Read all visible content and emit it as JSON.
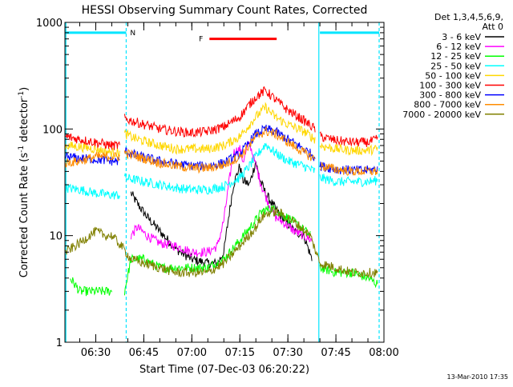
{
  "chart_data": {
    "type": "line",
    "title": "HESSI Observing Summary Count Rates, Corrected",
    "ylabel": "Corrected Count Rate (s^-1 detector^-1)",
    "ylabel_parts": [
      "Corrected Count Rate (s",
      "-1",
      " detector",
      "-1",
      ")"
    ],
    "xlabel": "Start Time (07-Dec-03 06:20:22)",
    "footer_date": "13-Mar-2010 17:35",
    "yscale": "log",
    "ylim": [
      1,
      1000
    ],
    "y_ticks": [
      1,
      10,
      100,
      1000
    ],
    "xlim": [
      "06:20:22",
      "08:00:00"
    ],
    "x_ticks": [
      "06:30",
      "06:45",
      "07:00",
      "07:15",
      "07:30",
      "07:45",
      "08:00"
    ],
    "legend": {
      "placement": "right",
      "header": [
        "Det 1,3,4,5,6,9,",
        "Att 0"
      ],
      "entries": [
        {
          "label": "3 - 6 keV",
          "color": "#000000"
        },
        {
          "label": "6 - 12 keV",
          "color": "#ff00ff"
        },
        {
          "label": "12 - 25 keV",
          "color": "#00ff00"
        },
        {
          "label": "25 - 50 keV",
          "color": "#00ffff"
        },
        {
          "label": "50 - 100 keV",
          "color": "#ffd700"
        },
        {
          "label": "100 - 300 keV",
          "color": "#ff0000"
        },
        {
          "label": "300 - 800 keV",
          "color": "#0000ff"
        },
        {
          "label": "800 - 7000 keV",
          "color": "#ff8c00"
        },
        {
          "label": "7000 - 20000 keV",
          "color": "#808000"
        }
      ]
    },
    "annotations": [
      {
        "label": "N",
        "color": "#00e5ff",
        "segments": [
          [
            "06:20:22",
            "06:39:30"
          ],
          [
            "07:40:00",
            "07:58:30"
          ]
        ],
        "level": 800
      },
      {
        "label": "F",
        "color": "#ff0000",
        "segments": [
          [
            "07:05:30",
            "07:26:30"
          ]
        ],
        "level": 700
      }
    ],
    "night_markers": {
      "color": "#00e5ff",
      "solid": [
        "06:20:40",
        "07:39:40"
      ],
      "dashed": [
        "06:39:30",
        "07:58:30"
      ]
    },
    "series": [
      {
        "name": "3 - 6 keV",
        "color": "#000000",
        "gaps_before": [
          "06:41:00",
          "07:40:00"
        ],
        "x": [
          "06:41:00",
          "06:43:00",
          "06:46:00",
          "06:50:00",
          "06:55:00",
          "07:00:00",
          "07:05:00",
          "07:08:00",
          "07:10:00",
          "07:11:30",
          "07:13:00",
          "07:15:00",
          "07:16:00",
          "07:18:00",
          "07:20:00",
          "07:21:00",
          "07:23:00",
          "07:26:00",
          "07:29:00",
          "07:32:00",
          "07:35:00",
          "07:37:30"
        ],
        "y": [
          25,
          20,
          15,
          11,
          7.5,
          6,
          5.5,
          5.5,
          7,
          15,
          30,
          45,
          33,
          30,
          50,
          35,
          25,
          18,
          14,
          11,
          10,
          6
        ]
      },
      {
        "name": "6 - 12 keV",
        "color": "#ff00ff",
        "gaps_before": [
          "06:41:00",
          "07:40:00"
        ],
        "x": [
          "06:39:00",
          "06:41:00",
          "06:43:00",
          "06:46:00",
          "06:50:00",
          "06:55:00",
          "07:00:00",
          "07:05:00",
          "07:08:00",
          "07:10:00",
          "07:11:30",
          "07:13:00",
          "07:15:00",
          "07:16:00",
          "07:18:00",
          "07:20:00",
          "07:22:00",
          "07:24:00",
          "07:26:00",
          "07:29:00",
          "07:32:00",
          "07:35:00",
          "07:37:30"
        ],
        "y": [
          6,
          10,
          12,
          10,
          8.5,
          8,
          7,
          7,
          8,
          14,
          30,
          60,
          65,
          50,
          75,
          45,
          28,
          20,
          15,
          13,
          11,
          10,
          9
        ]
      },
      {
        "name": "12 - 25 keV",
        "color": "#00ff00",
        "gaps_before": [
          "06:39:00",
          "07:40:00"
        ],
        "x": [
          "06:22:00",
          "06:25:00",
          "06:30:00",
          "06:35:00",
          "06:39:00",
          "06:41:00",
          "06:45:00",
          "06:50:00",
          "06:55:00",
          "07:00:00",
          "07:05:00",
          "07:10:00",
          "07:15:00",
          "07:20:00",
          "07:22:00",
          "07:25:00",
          "07:28:00",
          "07:31:00",
          "07:34:00",
          "07:37:00",
          "07:40:00",
          "07:45:00",
          "07:50:00",
          "07:55:00",
          "07:58:00"
        ],
        "y": [
          4,
          3,
          3,
          3,
          3,
          6,
          6,
          5,
          5,
          5,
          5,
          6,
          9,
          14,
          17,
          18,
          16,
          14,
          12,
          10,
          5,
          4.5,
          4.5,
          4,
          3.5
        ]
      },
      {
        "name": "25 - 50 keV",
        "color": "#00ffff",
        "gaps_before": [
          "06:39:00",
          "07:40:00"
        ],
        "x": [
          "06:20:30",
          "06:25:00",
          "06:30:00",
          "06:35:00",
          "06:37:30",
          "06:39:00",
          "06:43:00",
          "06:50:00",
          "06:55:00",
          "07:00:00",
          "07:05:00",
          "07:10:00",
          "07:15:00",
          "07:18:00",
          "07:20:00",
          "07:23:00",
          "07:26:00",
          "07:30:00",
          "07:35:00",
          "07:38:30",
          "07:40:00",
          "07:45:00",
          "07:50:00",
          "07:55:00",
          "07:58:00"
        ],
        "y": [
          28,
          27,
          25,
          24,
          24,
          35,
          33,
          30,
          28,
          27,
          27,
          29,
          35,
          45,
          55,
          72,
          60,
          50,
          45,
          40,
          35,
          32,
          32,
          32,
          33
        ]
      },
      {
        "name": "50 - 100 keV",
        "color": "#ffd700",
        "gaps_before": [
          "06:39:00",
          "07:40:00"
        ],
        "x": [
          "06:20:30",
          "06:25:00",
          "06:30:00",
          "06:35:00",
          "06:37:30",
          "06:39:00",
          "06:43:00",
          "06:50:00",
          "06:55:00",
          "07:00:00",
          "07:05:00",
          "07:10:00",
          "07:15:00",
          "07:18:00",
          "07:20:00",
          "07:23:00",
          "07:26:00",
          "07:30:00",
          "07:35:00",
          "07:38:30",
          "07:40:00",
          "07:45:00",
          "07:50:00",
          "07:55:00",
          "07:58:00"
        ],
        "y": [
          70,
          68,
          65,
          60,
          60,
          90,
          80,
          70,
          65,
          65,
          65,
          70,
          85,
          110,
          130,
          160,
          130,
          110,
          95,
          80,
          70,
          65,
          63,
          63,
          65
        ]
      },
      {
        "name": "100 - 300 keV",
        "color": "#ff0000",
        "gaps_before": [
          "06:39:00",
          "07:40:00"
        ],
        "x": [
          "06:20:30",
          "06:25:00",
          "06:30:00",
          "06:35:00",
          "06:37:30",
          "06:39:00",
          "06:43:00",
          "06:50:00",
          "06:55:00",
          "07:00:00",
          "07:05:00",
          "07:10:00",
          "07:15:00",
          "07:18:00",
          "07:20:00",
          "07:23:00",
          "07:26:00",
          "07:30:00",
          "07:35:00",
          "07:38:30",
          "07:40:00",
          "07:45:00",
          "07:50:00",
          "07:55:00",
          "07:58:00"
        ],
        "y": [
          85,
          80,
          75,
          70,
          70,
          125,
          115,
          100,
          95,
          92,
          95,
          105,
          130,
          170,
          200,
          230,
          190,
          150,
          120,
          100,
          85,
          78,
          75,
          75,
          80
        ]
      },
      {
        "name": "300 - 800 keV",
        "color": "#0000ff",
        "gaps_before": [
          "06:39:00",
          "07:40:00"
        ],
        "x": [
          "06:20:30",
          "06:25:00",
          "06:30:00",
          "06:35:00",
          "06:37:30",
          "06:39:00",
          "06:43:00",
          "06:50:00",
          "06:55:00",
          "07:00:00",
          "07:05:00",
          "07:10:00",
          "07:15:00",
          "07:18:00",
          "07:20:00",
          "07:23:00",
          "07:26:00",
          "07:30:00",
          "07:35:00",
          "07:38:30",
          "07:40:00",
          "07:45:00",
          "07:50:00",
          "07:55:00",
          "07:58:00"
        ],
        "y": [
          55,
          53,
          52,
          50,
          50,
          62,
          56,
          50,
          47,
          45,
          45,
          48,
          58,
          75,
          90,
          100,
          95,
          80,
          65,
          55,
          45,
          42,
          41,
          41,
          42
        ]
      },
      {
        "name": "800 - 7000 keV",
        "color": "#ff8c00",
        "gaps_before": [
          "06:39:00",
          "07:40:00"
        ],
        "x": [
          "06:20:30",
          "06:25:00",
          "06:30:00",
          "06:35:00",
          "06:37:30",
          "06:39:00",
          "06:43:00",
          "06:50:00",
          "06:55:00",
          "07:00:00",
          "07:05:00",
          "07:10:00",
          "07:15:00",
          "07:18:00",
          "07:20:00",
          "07:23:00",
          "07:26:00",
          "07:30:00",
          "07:35:00",
          "07:38:30",
          "07:40:00",
          "07:45:00",
          "07:50:00",
          "07:55:00",
          "07:58:00"
        ],
        "y": [
          48,
          50,
          55,
          55,
          55,
          60,
          55,
          48,
          45,
          43,
          43,
          46,
          55,
          70,
          85,
          95,
          90,
          75,
          60,
          52,
          45,
          42,
          40,
          40,
          40
        ]
      },
      {
        "name": "7000 - 20000 keV",
        "color": "#808000",
        "gaps_before": [],
        "x": [
          "06:20:30",
          "06:25:00",
          "06:28:00",
          "06:30:00",
          "06:33:00",
          "06:35:00",
          "06:38:00",
          "06:41:00",
          "06:45:00",
          "06:50:00",
          "06:55:00",
          "07:00:00",
          "07:05:00",
          "07:10:00",
          "07:15:00",
          "07:20:00",
          "07:22:00",
          "07:25:00",
          "07:28:00",
          "07:31:00",
          "07:34:00",
          "07:37:00",
          "07:40:00",
          "07:45:00",
          "07:50:00",
          "07:55:00",
          "07:58:00"
        ],
        "y": [
          7,
          8.5,
          10,
          11,
          10,
          10,
          8,
          6,
          5.5,
          5,
          4.5,
          4.5,
          4.5,
          5.5,
          8,
          12,
          15,
          17,
          16,
          14,
          12,
          10,
          5.5,
          5,
          4.5,
          4.5,
          4.5
        ]
      }
    ]
  }
}
